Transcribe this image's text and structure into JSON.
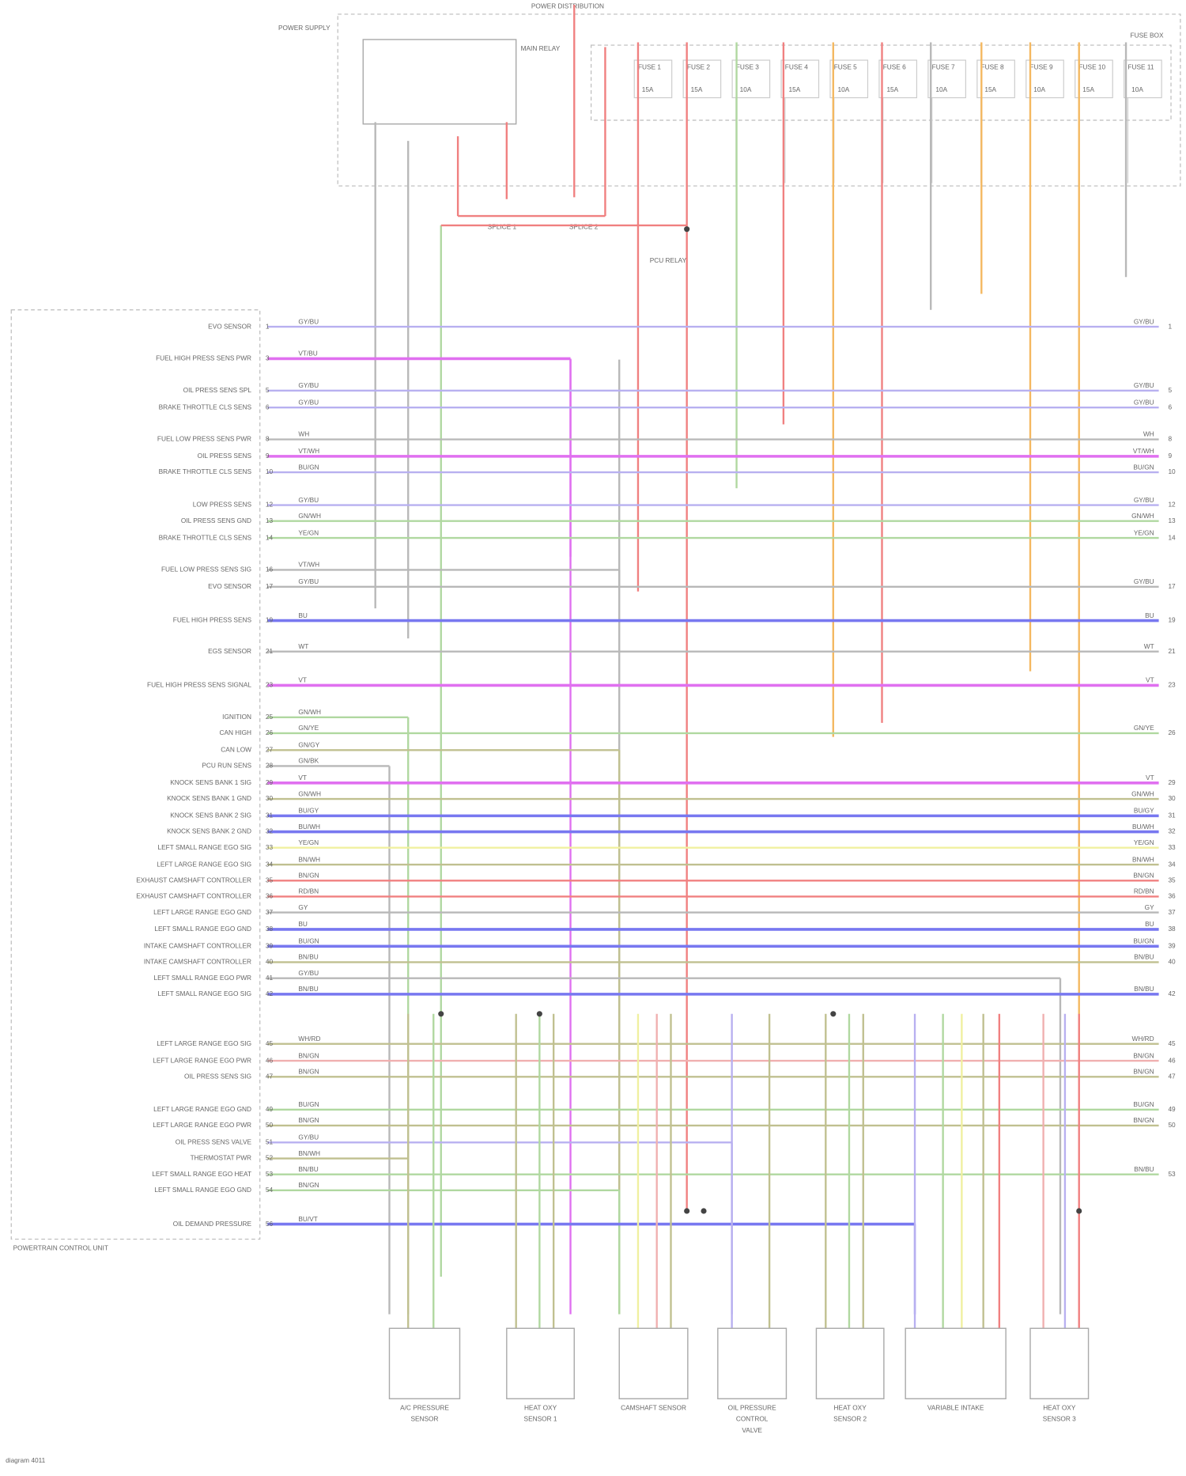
{
  "header": {
    "title": "POWER DISTRIBUTION",
    "fuse_box": "FUSE BOX",
    "power_supply": "POWER SUPPLY",
    "main_relay": "MAIN RELAY",
    "pcu_relay": "PCU RELAY",
    "splice_left": "SPLICE 1",
    "splice_right": "SPLICE 2"
  },
  "fuses": [
    {
      "name": "FUSE 1",
      "rating": "15A"
    },
    {
      "name": "FUSE 2",
      "rating": "15A"
    },
    {
      "name": "FUSE 3",
      "rating": "10A"
    },
    {
      "name": "FUSE 4",
      "rating": "15A"
    },
    {
      "name": "FUSE 5",
      "rating": "10A"
    },
    {
      "name": "FUSE 6",
      "rating": "15A"
    },
    {
      "name": "FUSE 7",
      "rating": "10A"
    },
    {
      "name": "FUSE 8",
      "rating": "15A"
    },
    {
      "name": "FUSE 9",
      "rating": "10A"
    },
    {
      "name": "FUSE 10",
      "rating": "15A"
    },
    {
      "name": "FUSE 11",
      "rating": "10A"
    }
  ],
  "pcu": {
    "name": "POWERTRAIN CONTROL UNIT",
    "pins": [
      {
        "label": "EVO SENSOR",
        "pin": "1",
        "wire": "GY/BU"
      },
      {
        "label": "FUEL HIGH PRESS SENS PWR",
        "pin": "3",
        "wire": "VT/BU"
      },
      {
        "label": "OIL PRESS SENS SPL",
        "pin": "5",
        "wire": "GY/BU"
      },
      {
        "label": "BRAKE THROTTLE CLS SENS",
        "pin": "6",
        "wire": "GY/BU"
      },
      {
        "label": "FUEL LOW PRESS SENS PWR",
        "pin": "8",
        "wire": "WH"
      },
      {
        "label": "OIL PRESS SENS",
        "pin": "9",
        "wire": "VT/WH"
      },
      {
        "label": "BRAKE THROTTLE CLS SENS",
        "pin": "10",
        "wire": "BU/GN"
      },
      {
        "label": "LOW PRESS SENS",
        "pin": "12",
        "wire": "GY/BU"
      },
      {
        "label": "OIL PRESS SENS GND",
        "pin": "13",
        "wire": "GN/WH"
      },
      {
        "label": "BRAKE THROTTLE CLS SENS",
        "pin": "14",
        "wire": "YE/GN"
      },
      {
        "label": "FUEL LOW PRESS SENS SIG",
        "pin": "16",
        "wire": "VT/WH"
      },
      {
        "label": "EVO SENSOR",
        "pin": "17",
        "wire": "GY/BU"
      },
      {
        "label": "FUEL HIGH PRESS SENS",
        "pin": "19",
        "wire": "BU"
      },
      {
        "label": "EGS SENSOR",
        "pin": "21",
        "wire": "WT"
      },
      {
        "label": "FUEL HIGH PRESS SENS SIGNAL",
        "pin": "23",
        "wire": "VT"
      },
      {
        "label": "IGNITION",
        "pin": "25",
        "wire": "GN/WH"
      },
      {
        "label": "CAN HIGH",
        "pin": "26",
        "wire": "GN/YE"
      },
      {
        "label": "CAN LOW",
        "pin": "27",
        "wire": "GN/GY"
      },
      {
        "label": "PCU RUN SENS",
        "pin": "28",
        "wire": "GN/BK"
      },
      {
        "label": "KNOCK SENS BANK 1 SIG",
        "pin": "29",
        "wire": "VT"
      },
      {
        "label": "KNOCK SENS BANK 1 GND",
        "pin": "30",
        "wire": "GN/WH"
      },
      {
        "label": "KNOCK SENS BANK 2 SIG",
        "pin": "31",
        "wire": "BU/GY"
      },
      {
        "label": "KNOCK SENS BANK 2 GND",
        "pin": "32",
        "wire": "BU/WH"
      },
      {
        "label": "LEFT SMALL RANGE EGO SIG",
        "pin": "33",
        "wire": "YE/GN"
      },
      {
        "label": "LEFT LARGE RANGE EGO SIG",
        "pin": "34",
        "wire": "BN/WH"
      },
      {
        "label": "EXHAUST CAMSHAFT CONTROLLER",
        "pin": "35",
        "wire": "BN/GN"
      },
      {
        "label": "EXHAUST CAMSHAFT CONTROLLER",
        "pin": "36",
        "wire": "RD/BN"
      },
      {
        "label": "LEFT LARGE RANGE EGO GND",
        "pin": "37",
        "wire": "GY"
      },
      {
        "label": "LEFT SMALL RANGE EGO GND",
        "pin": "38",
        "wire": "BU"
      },
      {
        "label": "INTAKE CAMSHAFT CONTROLLER",
        "pin": "39",
        "wire": "BU/GN"
      },
      {
        "label": "INTAKE CAMSHAFT CONTROLLER",
        "pin": "40",
        "wire": "BN/BU"
      },
      {
        "label": "LEFT SMALL RANGE EGO PWR",
        "pin": "41",
        "wire": "GY/BU"
      },
      {
        "label": "LEFT SMALL RANGE EGO SIG",
        "pin": "42",
        "wire": "BN/BU"
      },
      {
        "label": "LEFT LARGE RANGE EGO SIG",
        "pin": "45",
        "wire": "WH/RD"
      },
      {
        "label": "LEFT LARGE RANGE EGO PWR",
        "pin": "46",
        "wire": "BN/GN"
      },
      {
        "label": "OIL PRESS SENS SIG",
        "pin": "47",
        "wire": "BN/GN"
      },
      {
        "label": "LEFT LARGE RANGE EGO GND",
        "pin": "49",
        "wire": "BU/GN"
      },
      {
        "label": "LEFT LARGE RANGE EGO PWR",
        "pin": "50",
        "wire": "BN/GN"
      },
      {
        "label": "OIL PRESS SENS VALVE",
        "pin": "51",
        "wire": "GY/BU"
      },
      {
        "label": "THERMOSTAT PWR",
        "pin": "52",
        "wire": "BN/WH"
      },
      {
        "label": "LEFT SMALL RANGE EGO HEAT",
        "pin": "53",
        "wire": "BN/BU"
      },
      {
        "label": "LEFT SMALL RANGE EGO GND",
        "pin": "54",
        "wire": "BN/GN"
      },
      {
        "label": "OIL DEMAND PRESSURE",
        "pin": "56",
        "wire": "BU/VT"
      }
    ]
  },
  "components": [
    {
      "lines": [
        "A/C PRESSURE",
        "SENSOR"
      ]
    },
    {
      "lines": [
        "HEAT OXY",
        "SENSOR 1"
      ]
    },
    {
      "lines": [
        "CAMSHAFT SENSOR"
      ]
    },
    {
      "lines": [
        "OIL PRESSURE",
        "CONTROL",
        "VALVE"
      ]
    },
    {
      "lines": [
        "HEAT OXY",
        "SENSOR 2"
      ]
    },
    {
      "lines": [
        "VARIABLE INTAKE"
      ]
    },
    {
      "lines": [
        "HEAT OXY",
        "SENSOR 3"
      ]
    }
  ],
  "footer": {
    "id": "diagram 4011"
  }
}
